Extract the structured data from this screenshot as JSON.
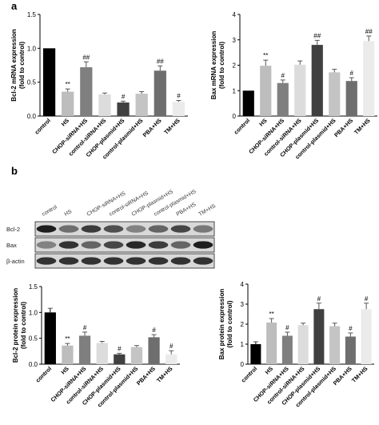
{
  "panel_labels": {
    "a": "a",
    "b": "b"
  },
  "blot": {
    "lane_labels": [
      "control",
      "HS",
      "CHOP-siRNA+HS",
      "control-siRNA+HS",
      "CHOP-plasmid+HS",
      "control-plasmid+HS",
      "PBA+HS",
      "TM+HS"
    ],
    "row_labels": [
      "Bcl-2",
      "Bax",
      "β-actin"
    ],
    "intensity": {
      "Bcl-2": [
        0.95,
        0.55,
        0.8,
        0.7,
        0.45,
        0.6,
        0.75,
        0.5
      ],
      "Bax": [
        0.45,
        0.85,
        0.6,
        0.75,
        0.9,
        0.8,
        0.6,
        0.95
      ],
      "β-actin": [
        0.85,
        0.85,
        0.85,
        0.85,
        0.85,
        0.85,
        0.85,
        0.85
      ]
    }
  },
  "chart_data": [
    {
      "type": "bar",
      "ylabel": "Bcl-2 mRNA expression\n(fold to control)",
      "ylim": [
        0,
        1.5
      ],
      "yticks": [
        "0.0",
        "0.5",
        "1.0",
        "1.5"
      ],
      "categories": [
        "control",
        "HS",
        "CHOP-siRNA+HS",
        "control-siRNA+HS",
        "CHOP-plasmid+HS",
        "control-plasmid+HS",
        "PBA+HS",
        "TM+HS"
      ],
      "values": [
        1.0,
        0.36,
        0.72,
        0.32,
        0.2,
        0.33,
        0.67,
        0.21
      ],
      "errors": [
        0.0,
        0.04,
        0.08,
        0.02,
        0.02,
        0.03,
        0.07,
        0.02
      ],
      "annotations": [
        "",
        "**",
        "##",
        "",
        "#",
        "",
        "##",
        "#"
      ],
      "colors": [
        "#000000",
        "#bdbdbd",
        "#7f7f7f",
        "#dcdcdc",
        "#404040",
        "#c4c4c4",
        "#6e6e6e",
        "#ebebeb"
      ]
    },
    {
      "type": "bar",
      "ylabel": "Bax mRNA expression\n(fold to control)",
      "ylim": [
        0,
        4
      ],
      "yticks": [
        "0",
        "1",
        "2",
        "3",
        "4"
      ],
      "categories": [
        "control",
        "HS",
        "CHOP-siRNA+HS",
        "control-siRNA+HS",
        "CHOP-plasmid+HS",
        "control-plasmid+HS",
        "PBA+HS",
        "TM+HS"
      ],
      "values": [
        1.0,
        1.98,
        1.3,
        2.02,
        2.8,
        1.72,
        1.38,
        2.95
      ],
      "errors": [
        0.0,
        0.22,
        0.12,
        0.15,
        0.18,
        0.12,
        0.13,
        0.2
      ],
      "annotations": [
        "",
        "**",
        "#",
        "",
        "##",
        "",
        "#",
        "##"
      ],
      "colors": [
        "#000000",
        "#bdbdbd",
        "#7f7f7f",
        "#dcdcdc",
        "#404040",
        "#c4c4c4",
        "#6e6e6e",
        "#ebebeb"
      ]
    },
    {
      "type": "bar",
      "ylabel": "Bcl-2 protein expression\n(fold to control)",
      "ylim": [
        0,
        1.5
      ],
      "yticks": [
        "0.0",
        "0.5",
        "1.0",
        "1.5"
      ],
      "categories": [
        "control",
        "HS",
        "CHOP-siRNA+HS",
        "control-siRNA+HS",
        "CHOP-plasmid+HS",
        "control-plasmid+HS",
        "PBA+HS",
        "TM+HS"
      ],
      "values": [
        1.0,
        0.36,
        0.55,
        0.41,
        0.19,
        0.33,
        0.52,
        0.19
      ],
      "errors": [
        0.08,
        0.04,
        0.07,
        0.03,
        0.02,
        0.03,
        0.05,
        0.07
      ],
      "annotations": [
        "",
        "**",
        "#",
        "",
        "#",
        "",
        "#",
        "#"
      ],
      "colors": [
        "#000000",
        "#bdbdbd",
        "#7f7f7f",
        "#dcdcdc",
        "#404040",
        "#c4c4c4",
        "#6e6e6e",
        "#ebebeb"
      ]
    },
    {
      "type": "bar",
      "ylabel": "Bax protein expression\n(fold to control)",
      "ylim": [
        0,
        4
      ],
      "yticks": [
        "0",
        "1",
        "2",
        "3",
        "4"
      ],
      "categories": [
        "control",
        "HS",
        "CHOP-siRNA+HS",
        "control-siRNA+HS",
        "CHOP-plasmid+HS",
        "control-plasmid+HS",
        "PBA+HS",
        "TM+HS"
      ],
      "values": [
        1.0,
        2.08,
        1.42,
        1.95,
        2.75,
        1.9,
        1.38,
        2.75
      ],
      "errors": [
        0.12,
        0.2,
        0.18,
        0.1,
        0.3,
        0.15,
        0.18,
        0.3
      ],
      "annotations": [
        "",
        "**",
        "#",
        "",
        "#",
        "",
        "#",
        "#"
      ],
      "colors": [
        "#000000",
        "#bdbdbd",
        "#7f7f7f",
        "#dcdcdc",
        "#404040",
        "#c4c4c4",
        "#6e6e6e",
        "#ebebeb"
      ]
    }
  ]
}
